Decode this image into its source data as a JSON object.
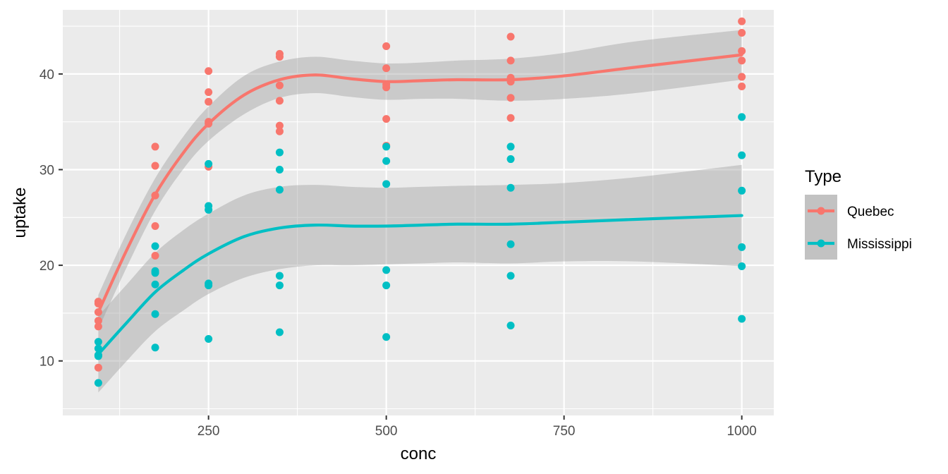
{
  "chart_data": {
    "type": "scatter",
    "xlabel": "conc",
    "ylabel": "uptake",
    "xlim": [
      45,
      1045
    ],
    "ylim": [
      4.3,
      46.7
    ],
    "x_ticks": [
      250,
      500,
      750,
      1000
    ],
    "y_ticks": [
      10,
      20,
      30,
      40
    ],
    "grid": true,
    "legend": {
      "title": "Type",
      "placement": "right"
    },
    "series": [
      {
        "name": "Quebec",
        "color": "#F8766D",
        "points": [
          [
            95,
            16.0
          ],
          [
            95,
            13.6
          ],
          [
            95,
            16.2
          ],
          [
            95,
            14.2
          ],
          [
            95,
            9.3
          ],
          [
            95,
            15.1
          ],
          [
            175,
            30.4
          ],
          [
            175,
            27.3
          ],
          [
            175,
            32.4
          ],
          [
            175,
            24.1
          ],
          [
            175,
            27.3
          ],
          [
            175,
            21.0
          ],
          [
            250,
            34.8
          ],
          [
            250,
            37.1
          ],
          [
            250,
            40.3
          ],
          [
            250,
            30.3
          ],
          [
            250,
            35.0
          ],
          [
            250,
            38.1
          ],
          [
            350,
            37.2
          ],
          [
            350,
            41.8
          ],
          [
            350,
            42.1
          ],
          [
            350,
            34.6
          ],
          [
            350,
            38.8
          ],
          [
            350,
            34.0
          ],
          [
            500,
            35.3
          ],
          [
            500,
            40.6
          ],
          [
            500,
            42.9
          ],
          [
            500,
            32.5
          ],
          [
            500,
            38.6
          ],
          [
            500,
            38.9
          ],
          [
            675,
            39.2
          ],
          [
            675,
            41.4
          ],
          [
            675,
            43.9
          ],
          [
            675,
            35.4
          ],
          [
            675,
            37.5
          ],
          [
            675,
            39.6
          ],
          [
            1000,
            39.7
          ],
          [
            1000,
            44.3
          ],
          [
            1000,
            45.5
          ],
          [
            1000,
            38.7
          ],
          [
            1000,
            42.4
          ],
          [
            1000,
            41.4
          ]
        ],
        "smooth": [
          [
            95,
            15.1
          ],
          [
            135,
            21.6
          ],
          [
            175,
            27.4
          ],
          [
            215,
            31.8
          ],
          [
            250,
            34.8
          ],
          [
            300,
            37.8
          ],
          [
            350,
            39.4
          ],
          [
            400,
            39.9
          ],
          [
            450,
            39.5
          ],
          [
            500,
            39.2
          ],
          [
            550,
            39.3
          ],
          [
            600,
            39.4
          ],
          [
            675,
            39.4
          ],
          [
            750,
            39.8
          ],
          [
            850,
            40.7
          ],
          [
            1000,
            42.0
          ]
        ],
        "band_upper": [
          [
            95,
            16.9
          ],
          [
            135,
            23.4
          ],
          [
            175,
            29.1
          ],
          [
            215,
            33.5
          ],
          [
            250,
            36.6
          ],
          [
            300,
            39.8
          ],
          [
            350,
            41.3
          ],
          [
            400,
            41.8
          ],
          [
            450,
            41.4
          ],
          [
            500,
            41.1
          ],
          [
            550,
            41.2
          ],
          [
            600,
            41.4
          ],
          [
            675,
            41.6
          ],
          [
            750,
            42.2
          ],
          [
            850,
            43.4
          ],
          [
            1000,
            44.6
          ]
        ],
        "band_lower": [
          [
            95,
            13.3
          ],
          [
            135,
            19.8
          ],
          [
            175,
            25.7
          ],
          [
            215,
            30.1
          ],
          [
            250,
            33.0
          ],
          [
            300,
            35.8
          ],
          [
            350,
            37.5
          ],
          [
            400,
            38.0
          ],
          [
            450,
            37.6
          ],
          [
            500,
            37.3
          ],
          [
            550,
            37.4
          ],
          [
            600,
            37.4
          ],
          [
            675,
            37.2
          ],
          [
            750,
            37.4
          ],
          [
            850,
            38.0
          ],
          [
            1000,
            39.4
          ]
        ]
      },
      {
        "name": "Mississippi",
        "color": "#00BFC4",
        "points": [
          [
            95,
            10.6
          ],
          [
            95,
            12.0
          ],
          [
            95,
            11.3
          ],
          [
            95,
            10.5
          ],
          [
            95,
            7.7
          ],
          [
            95,
            10.6
          ],
          [
            175,
            19.2
          ],
          [
            175,
            22.0
          ],
          [
            175,
            19.4
          ],
          [
            175,
            14.9
          ],
          [
            175,
            11.4
          ],
          [
            175,
            18.0
          ],
          [
            250,
            26.2
          ],
          [
            250,
            30.6
          ],
          [
            250,
            25.8
          ],
          [
            250,
            18.1
          ],
          [
            250,
            12.3
          ],
          [
            250,
            17.9
          ],
          [
            350,
            30.0
          ],
          [
            350,
            31.8
          ],
          [
            350,
            27.9
          ],
          [
            350,
            18.9
          ],
          [
            350,
            13.0
          ],
          [
            350,
            17.9
          ],
          [
            500,
            30.9
          ],
          [
            500,
            32.4
          ],
          [
            500,
            28.5
          ],
          [
            500,
            19.5
          ],
          [
            500,
            12.5
          ],
          [
            500,
            17.9
          ],
          [
            675,
            32.4
          ],
          [
            675,
            31.1
          ],
          [
            675,
            28.1
          ],
          [
            675,
            22.2
          ],
          [
            675,
            13.7
          ],
          [
            675,
            18.9
          ],
          [
            1000,
            35.5
          ],
          [
            1000,
            31.5
          ],
          [
            1000,
            27.8
          ],
          [
            1000,
            21.9
          ],
          [
            1000,
            14.4
          ],
          [
            1000,
            19.9
          ]
        ],
        "smooth": [
          [
            95,
            10.7
          ],
          [
            135,
            14.0
          ],
          [
            175,
            17.2
          ],
          [
            215,
            19.5
          ],
          [
            250,
            21.2
          ],
          [
            300,
            23.0
          ],
          [
            350,
            23.9
          ],
          [
            400,
            24.2
          ],
          [
            450,
            24.1
          ],
          [
            500,
            24.1
          ],
          [
            550,
            24.2
          ],
          [
            600,
            24.3
          ],
          [
            675,
            24.3
          ],
          [
            750,
            24.5
          ],
          [
            850,
            24.8
          ],
          [
            1000,
            25.2
          ]
        ],
        "band_upper": [
          [
            95,
            14.7
          ],
          [
            135,
            18.0
          ],
          [
            175,
            21.3
          ],
          [
            215,
            23.7
          ],
          [
            250,
            25.4
          ],
          [
            300,
            27.3
          ],
          [
            350,
            28.2
          ],
          [
            400,
            28.4
          ],
          [
            450,
            28.2
          ],
          [
            500,
            28.1
          ],
          [
            550,
            28.2
          ],
          [
            600,
            28.3
          ],
          [
            675,
            28.4
          ],
          [
            750,
            28.6
          ],
          [
            850,
            29.2
          ],
          [
            1000,
            30.5
          ]
        ],
        "band_lower": [
          [
            95,
            6.7
          ],
          [
            135,
            10.0
          ],
          [
            175,
            13.1
          ],
          [
            215,
            15.3
          ],
          [
            250,
            17.0
          ],
          [
            300,
            18.7
          ],
          [
            350,
            19.6
          ],
          [
            400,
            20.0
          ],
          [
            450,
            20.0
          ],
          [
            500,
            20.1
          ],
          [
            550,
            20.2
          ],
          [
            600,
            20.3
          ],
          [
            675,
            20.2
          ],
          [
            750,
            20.4
          ],
          [
            850,
            20.4
          ],
          [
            1000,
            19.9
          ]
        ]
      }
    ]
  }
}
